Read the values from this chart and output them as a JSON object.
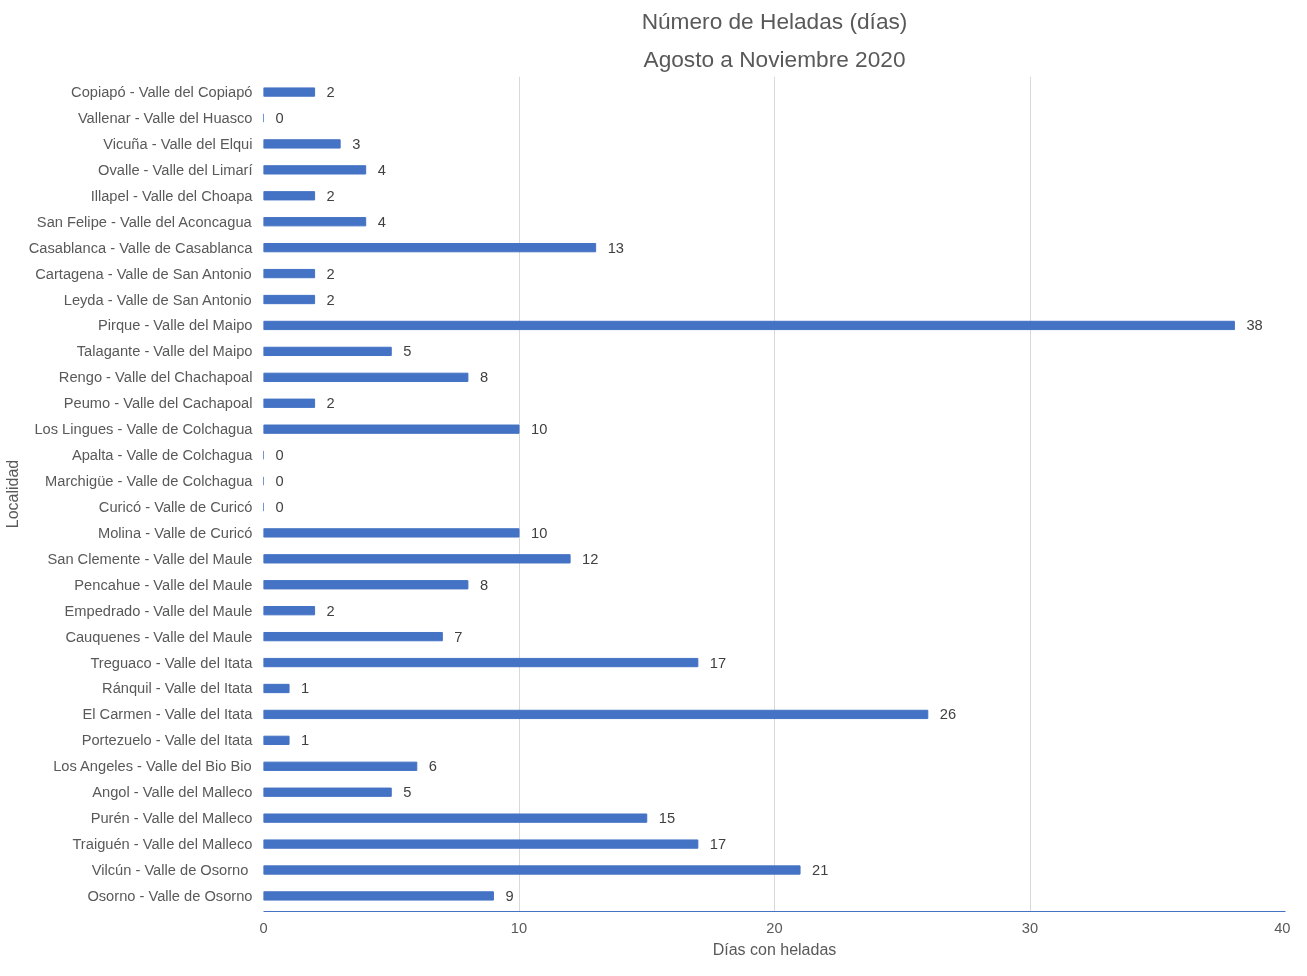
{
  "chart_data": {
    "type": "bar",
    "orientation": "horizontal",
    "title": "Número de Heladas (días)",
    "subtitle": "Agosto a Noviembre 2020",
    "xlabel": "Días con heladas",
    "ylabel": "Localidad",
    "categories": [
      "Copiapó - Valle del Copiapó",
      "Vallenar - Valle del Huasco",
      "Vicuña - Valle del Elqui",
      "Ovalle - Valle del Limarí",
      "Illapel - Valle del Choapa",
      "San Felipe - Valle del Aconcagua",
      "Casablanca - Valle de Casablanca",
      "Cartagena - Valle de San Antonio",
      "Leyda - Valle de San Antonio",
      "Pirque - Valle del Maipo",
      "Talagante - Valle del Maipo",
      "Rengo - Valle del Chachapoal",
      "Peumo - Valle del Cachapoal",
      "Los Lingues - Valle de Colchagua",
      "Apalta - Valle de Colchagua",
      "Marchigüe - Valle de Colchagua",
      "Curicó - Valle de Curicó",
      "Molina - Valle de Curicó",
      "San Clemente - Valle del Maule",
      "Pencahue - Valle del Maule",
      "Empedrado - Valle del Maule",
      "Cauquenes - Valle del Maule",
      "Treguaco - Valle del Itata",
      "Ránquil - Valle del Itata",
      "El Carmen - Valle del Itata",
      "Portezuelo - Valle del Itata",
      "Los Angeles - Valle del Bio Bio",
      "Angol - Valle del Malleco",
      "Purén - Valle del Malleco",
      "Traiguén - Valle del Malleco",
      "Vilcún  - Valle de Osorno",
      "Osorno - Valle de Osorno"
    ],
    "values": [
      2,
      0,
      3,
      4,
      2,
      4,
      13,
      2,
      2,
      38,
      5,
      8,
      2,
      10,
      0,
      0,
      0,
      10,
      12,
      8,
      2,
      7,
      17,
      1,
      26,
      1,
      6,
      5,
      15,
      17,
      21,
      9
    ],
    "color": "#4472c4",
    "xlim": [
      0,
      40
    ],
    "xticks": [
      0,
      10,
      20,
      30,
      40
    ],
    "grid": "x",
    "data_labels": true
  }
}
